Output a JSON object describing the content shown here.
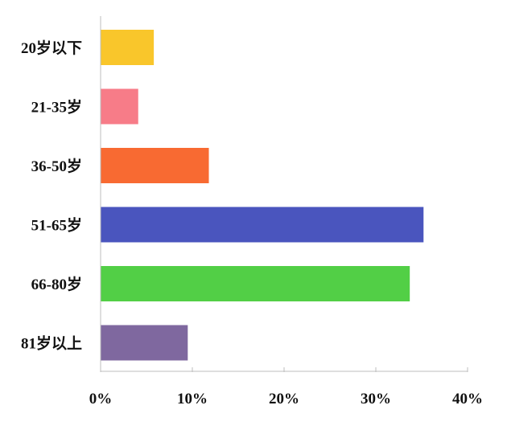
{
  "chart_data": {
    "type": "bar",
    "orientation": "horizontal",
    "categories": [
      "20岁以下",
      "21-35岁",
      "36-50岁",
      "51-65岁",
      "66-80岁",
      "81岁以上"
    ],
    "values": [
      5.8,
      4.1,
      11.8,
      35.2,
      33.7,
      9.5
    ],
    "unit": "%",
    "xlim": [
      0,
      40
    ],
    "xticks": [
      0,
      10,
      20,
      30,
      40
    ],
    "xtick_labels": [
      "0%",
      "10%",
      "20%",
      "30%",
      "40%"
    ],
    "colors": [
      "#f9c62b",
      "#f77c88",
      "#f86a32",
      "#4a55be",
      "#52cf46",
      "#7f689f"
    ],
    "title": "",
    "xlabel": "",
    "ylabel": "",
    "grid": false,
    "legend": "none"
  }
}
